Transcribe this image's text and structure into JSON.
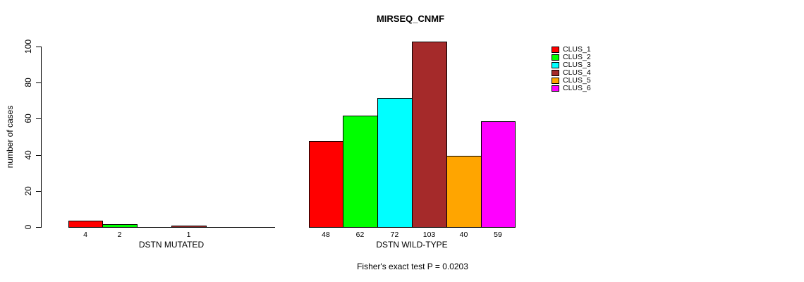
{
  "chart_data": {
    "type": "bar",
    "title": "MIRSEQ_CNMF",
    "ylabel": "number of cases",
    "ylim": [
      0,
      100
    ],
    "yticks": [
      0,
      20,
      40,
      60,
      80,
      100
    ],
    "grid": false,
    "legend_position": "right-outside",
    "legend": [
      {
        "label": "CLUS_1",
        "color": "#FF0000"
      },
      {
        "label": "CLUS_2",
        "color": "#00FF00"
      },
      {
        "label": "CLUS_3",
        "color": "#00FFFF"
      },
      {
        "label": "CLUS_4",
        "color": "#A52A2A"
      },
      {
        "label": "CLUS_5",
        "color": "#FFA500"
      },
      {
        "label": "CLUS_6",
        "color": "#FF00FF"
      }
    ],
    "groups": [
      {
        "label": "DSTN MUTATED",
        "values": [
          4,
          2,
          0,
          1,
          0,
          0
        ],
        "value_labels": [
          "4",
          "2",
          "",
          "1",
          "",
          ""
        ]
      },
      {
        "label": "DSTN WILD-TYPE",
        "values": [
          48,
          62,
          72,
          103,
          40,
          59
        ],
        "value_labels": [
          "48",
          "62",
          "72",
          "103",
          "40",
          "59"
        ]
      }
    ],
    "footnote": "Fisher's exact test P = 0.0203",
    "axis_color": "#000000",
    "text_color": "#000000",
    "background_color": "#ffffff"
  }
}
